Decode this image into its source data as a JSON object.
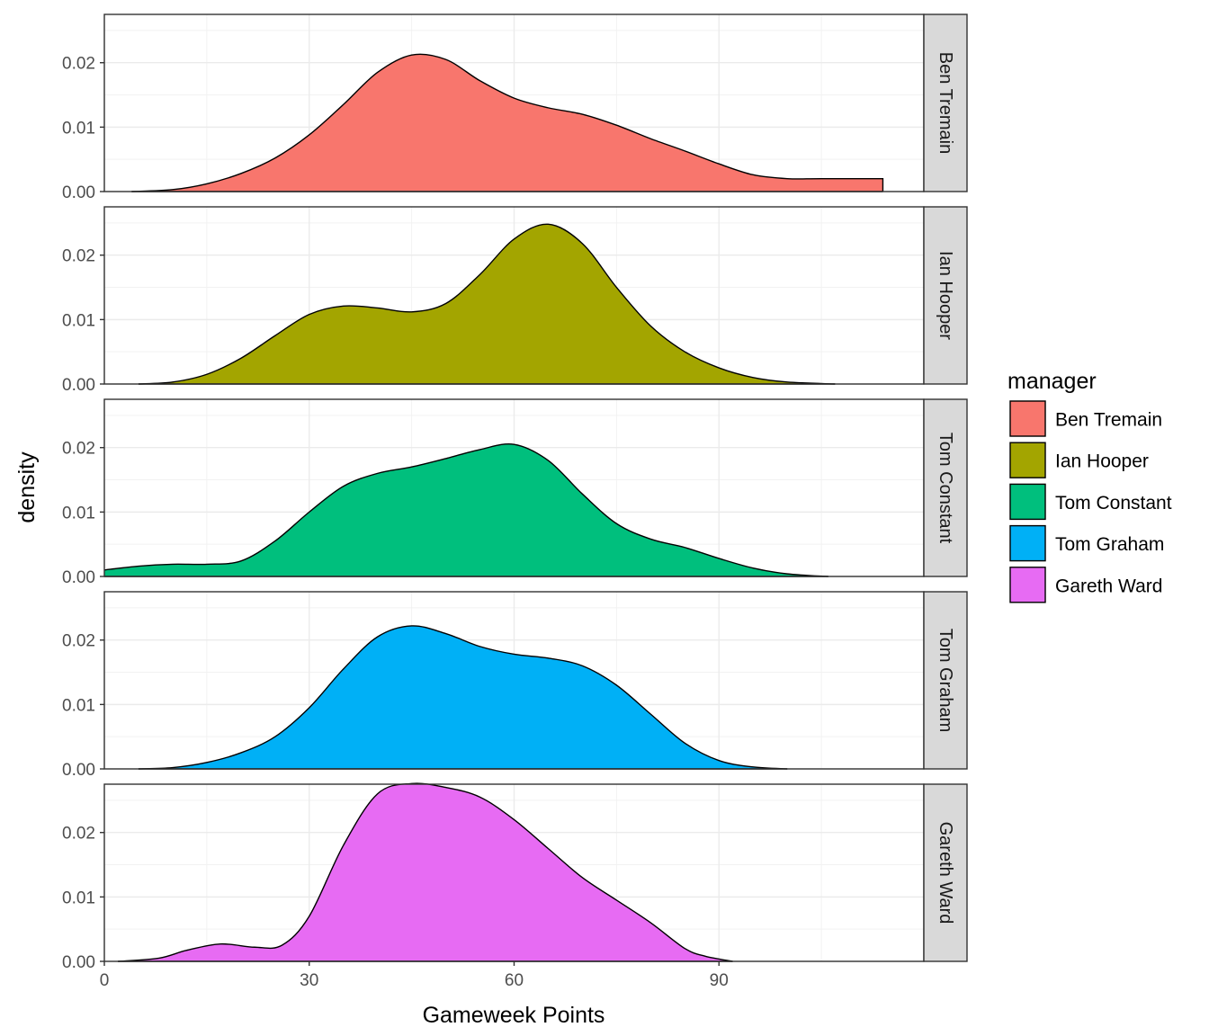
{
  "chart_data": {
    "type": "area",
    "subtype": "density",
    "xlabel": "Gameweek Points",
    "ylabel": "density",
    "xlim": [
      0,
      120
    ],
    "ylim": [
      0,
      0.0275
    ],
    "x_ticks": [
      0,
      30,
      60,
      90
    ],
    "x_tick_labels": [
      "0",
      "30",
      "60",
      "90"
    ],
    "y_ticks": [
      0,
      0.01,
      0.02
    ],
    "y_tick_labels": [
      "0.00",
      "0.01",
      "0.02"
    ],
    "grid": true,
    "legend": {
      "title": "manager",
      "position": "right"
    },
    "series": [
      {
        "name": "Ben Tremain",
        "color": "#F8766D",
        "x": [
          4,
          10,
          15,
          20,
          25,
          30,
          35,
          40,
          45,
          50,
          55,
          60,
          65,
          70,
          75,
          80,
          85,
          90,
          95,
          100,
          105,
          114
        ],
        "values": [
          0.0,
          0.0003,
          0.0012,
          0.0028,
          0.0052,
          0.0088,
          0.0135,
          0.0185,
          0.0212,
          0.0205,
          0.0172,
          0.0145,
          0.013,
          0.012,
          0.0103,
          0.0082,
          0.0063,
          0.0043,
          0.0026,
          0.002,
          0.002,
          0.002
        ]
      },
      {
        "name": "Ian Hooper",
        "color": "#A3A500",
        "x": [
          5,
          10,
          15,
          20,
          25,
          30,
          35,
          40,
          45,
          50,
          55,
          60,
          65,
          70,
          75,
          80,
          85,
          90,
          95,
          100,
          107
        ],
        "values": [
          0.0,
          0.0003,
          0.0015,
          0.004,
          0.0075,
          0.0108,
          0.0121,
          0.0118,
          0.0112,
          0.0125,
          0.017,
          0.0225,
          0.0248,
          0.0218,
          0.015,
          0.009,
          0.005,
          0.0025,
          0.001,
          0.0003,
          0.0
        ]
      },
      {
        "name": "Tom Constant",
        "color": "#00BF7D",
        "x": [
          0,
          5,
          10,
          15,
          20,
          25,
          30,
          35,
          40,
          45,
          50,
          55,
          60,
          65,
          70,
          75,
          80,
          85,
          90,
          95,
          100,
          106
        ],
        "values": [
          0.001,
          0.0016,
          0.0019,
          0.0019,
          0.0024,
          0.0055,
          0.01,
          0.014,
          0.016,
          0.017,
          0.0183,
          0.0197,
          0.0205,
          0.018,
          0.0128,
          0.0082,
          0.0058,
          0.0045,
          0.0028,
          0.0013,
          0.0004,
          0.0
        ]
      },
      {
        "name": "Tom Graham",
        "color": "#00B0F6",
        "x": [
          5,
          10,
          15,
          20,
          25,
          30,
          35,
          40,
          45,
          50,
          55,
          60,
          65,
          70,
          75,
          80,
          85,
          90,
          95,
          100
        ],
        "values": [
          0.0,
          0.0002,
          0.001,
          0.0025,
          0.005,
          0.0095,
          0.0155,
          0.0205,
          0.0222,
          0.021,
          0.019,
          0.0178,
          0.0172,
          0.016,
          0.013,
          0.0085,
          0.004,
          0.0013,
          0.0003,
          0.0
        ]
      },
      {
        "name": "Gareth Ward",
        "color": "#E76BF3",
        "x": [
          2,
          8,
          12,
          17,
          22,
          26,
          30,
          35,
          40,
          45,
          50,
          55,
          60,
          65,
          70,
          75,
          80,
          85,
          88,
          92
        ],
        "values": [
          0.0,
          0.0005,
          0.0017,
          0.0027,
          0.0022,
          0.0025,
          0.007,
          0.018,
          0.026,
          0.0276,
          0.027,
          0.0255,
          0.022,
          0.0175,
          0.013,
          0.0095,
          0.006,
          0.002,
          0.0008,
          0.0
        ]
      }
    ]
  }
}
